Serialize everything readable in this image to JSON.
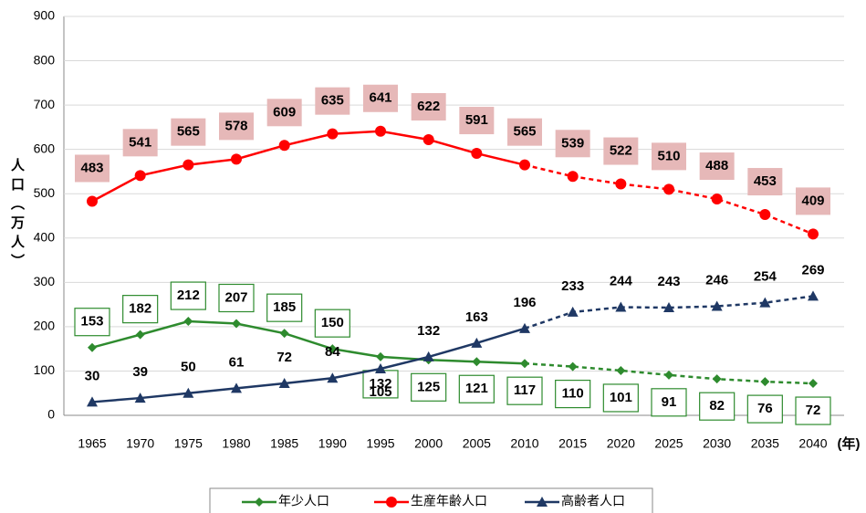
{
  "chart_data": {
    "type": "line",
    "x": [
      1965,
      1970,
      1975,
      1980,
      1985,
      1990,
      1995,
      2000,
      2005,
      2010,
      2015,
      2020,
      2025,
      2030,
      2035,
      2040
    ],
    "x_label": "(年)",
    "y_label": "人口（万人）",
    "ylim": [
      0,
      900
    ],
    "yticks": [
      0,
      100,
      200,
      300,
      400,
      500,
      600,
      700,
      800,
      900
    ],
    "grid": true,
    "dashed_from_x": 2010,
    "legend": "bottom",
    "series": [
      {
        "name": "年少人口",
        "color": "#2e8b2e",
        "marker": "diamond",
        "values": [
          153,
          182,
          212,
          207,
          185,
          150,
          132,
          125,
          121,
          117,
          110,
          101,
          91,
          82,
          76,
          72
        ]
      },
      {
        "name": "生産年齢人口",
        "color": "#ff0000",
        "marker": "circle",
        "values": [
          483,
          541,
          565,
          578,
          609,
          635,
          641,
          622,
          591,
          565,
          539,
          522,
          510,
          488,
          453,
          409
        ]
      },
      {
        "name": "高齢者人口",
        "color": "#1f3864",
        "marker": "triangle",
        "values": [
          30,
          39,
          50,
          61,
          72,
          84,
          105,
          132,
          163,
          196,
          233,
          244,
          243,
          246,
          254,
          269
        ]
      }
    ]
  }
}
